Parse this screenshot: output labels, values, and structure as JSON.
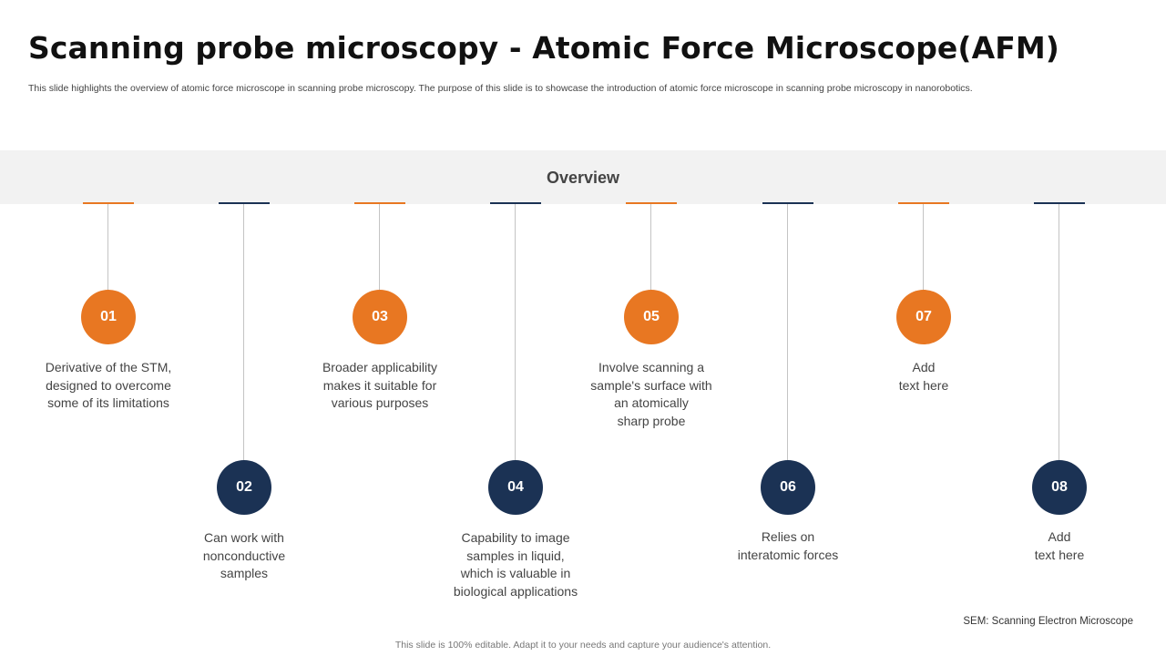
{
  "title": "Scanning probe microscopy - Atomic Force Microscope(AFM)",
  "subtitle": "This slide highlights the overview of atomic force microscope in scanning probe microscopy. The purpose of this slide is to showcase the introduction of atomic force microscope in scanning probe microscopy in nanorobotics.",
  "section_label": "Overview",
  "colors": {
    "orange": "#e87722",
    "navy": "#1b3254",
    "band": "#f2f2f2"
  },
  "steps": [
    {
      "number": "01",
      "color": "orange",
      "text": "Derivative of the STM,\ndesigned to overcome\nsome of its limitations"
    },
    {
      "number": "02",
      "color": "navy",
      "text": "Can work with\nnonconductive\nsamples"
    },
    {
      "number": "03",
      "color": "orange",
      "text": "Broader applicability\nmakes it suitable for\nvarious purposes"
    },
    {
      "number": "04",
      "color": "navy",
      "text": "Capability to image\nsamples in liquid,\nwhich is valuable in\nbiological applications"
    },
    {
      "number": "05",
      "color": "orange",
      "text": "Involve scanning a\nsample's surface with\nan atomically\nsharp probe"
    },
    {
      "number": "06",
      "color": "navy",
      "text": "Relies on\ninteratomic forces"
    },
    {
      "number": "07",
      "color": "orange",
      "text": "Add\ntext here"
    },
    {
      "number": "08",
      "color": "navy",
      "text": "Add\ntext here"
    }
  ],
  "footnote": "SEM: Scanning Electron Microscope",
  "footer": "This slide is 100% editable. Adapt it to your needs and capture your audience's attention."
}
